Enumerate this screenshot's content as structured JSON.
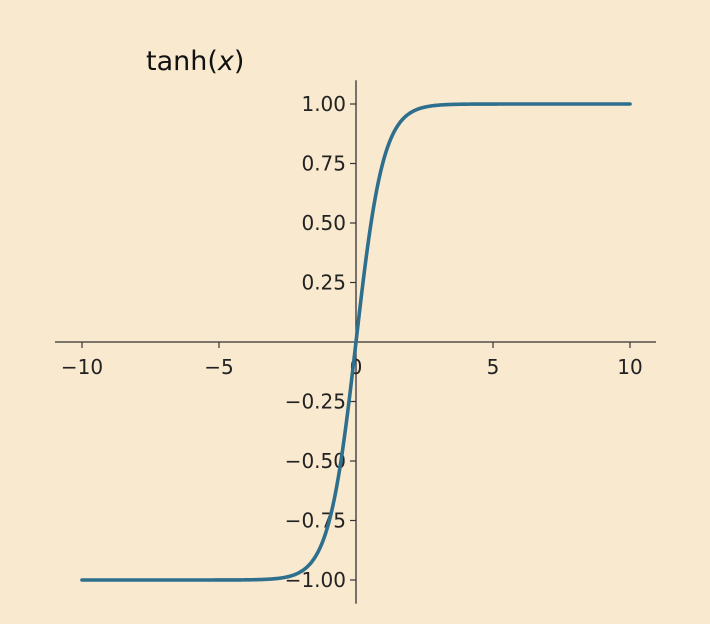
{
  "chart_data": {
    "type": "line",
    "title": "tanh(x)",
    "title_parts": {
      "prefix": "tanh(",
      "var": "x",
      "suffix": ")"
    },
    "xlabel": "",
    "ylabel": "",
    "function": "tanh",
    "xlim": [
      -10,
      10
    ],
    "ylim": [
      -1.1,
      1.1
    ],
    "grid": false,
    "x_ticks": [
      -10,
      -5,
      0,
      5,
      10
    ],
    "x_tick_labels": [
      "−10",
      "−5",
      "0",
      "5",
      "10"
    ],
    "y_ticks": [
      1.0,
      0.75,
      0.5,
      0.25,
      -0.25,
      -0.5,
      -0.75,
      -1.0
    ],
    "y_tick_labels": [
      "1.00",
      "0.75",
      "0.50",
      "0.25",
      "−0.25",
      "−0.50",
      "−0.75",
      "−1.00"
    ],
    "series": [
      {
        "x": [
          -10,
          -5,
          -3,
          -2.5,
          -2,
          -1.5,
          -1.25,
          -1,
          -0.75,
          -0.5,
          -0.25,
          0,
          0.25,
          0.5,
          0.75,
          1,
          1.25,
          1.5,
          2,
          2.5,
          3,
          5,
          10
        ],
        "y": [
          -1.0,
          -0.9999,
          -0.995,
          -0.987,
          -0.964,
          -0.905,
          -0.848,
          -0.762,
          -0.635,
          -0.462,
          -0.245,
          0.0,
          0.245,
          0.462,
          0.635,
          0.762,
          0.848,
          0.905,
          0.964,
          0.987,
          0.995,
          0.9999,
          1.0
        ]
      }
    ],
    "colors": {
      "line": "#2e6f8e",
      "axis": "#333333",
      "background": "#f9e9cf"
    }
  }
}
